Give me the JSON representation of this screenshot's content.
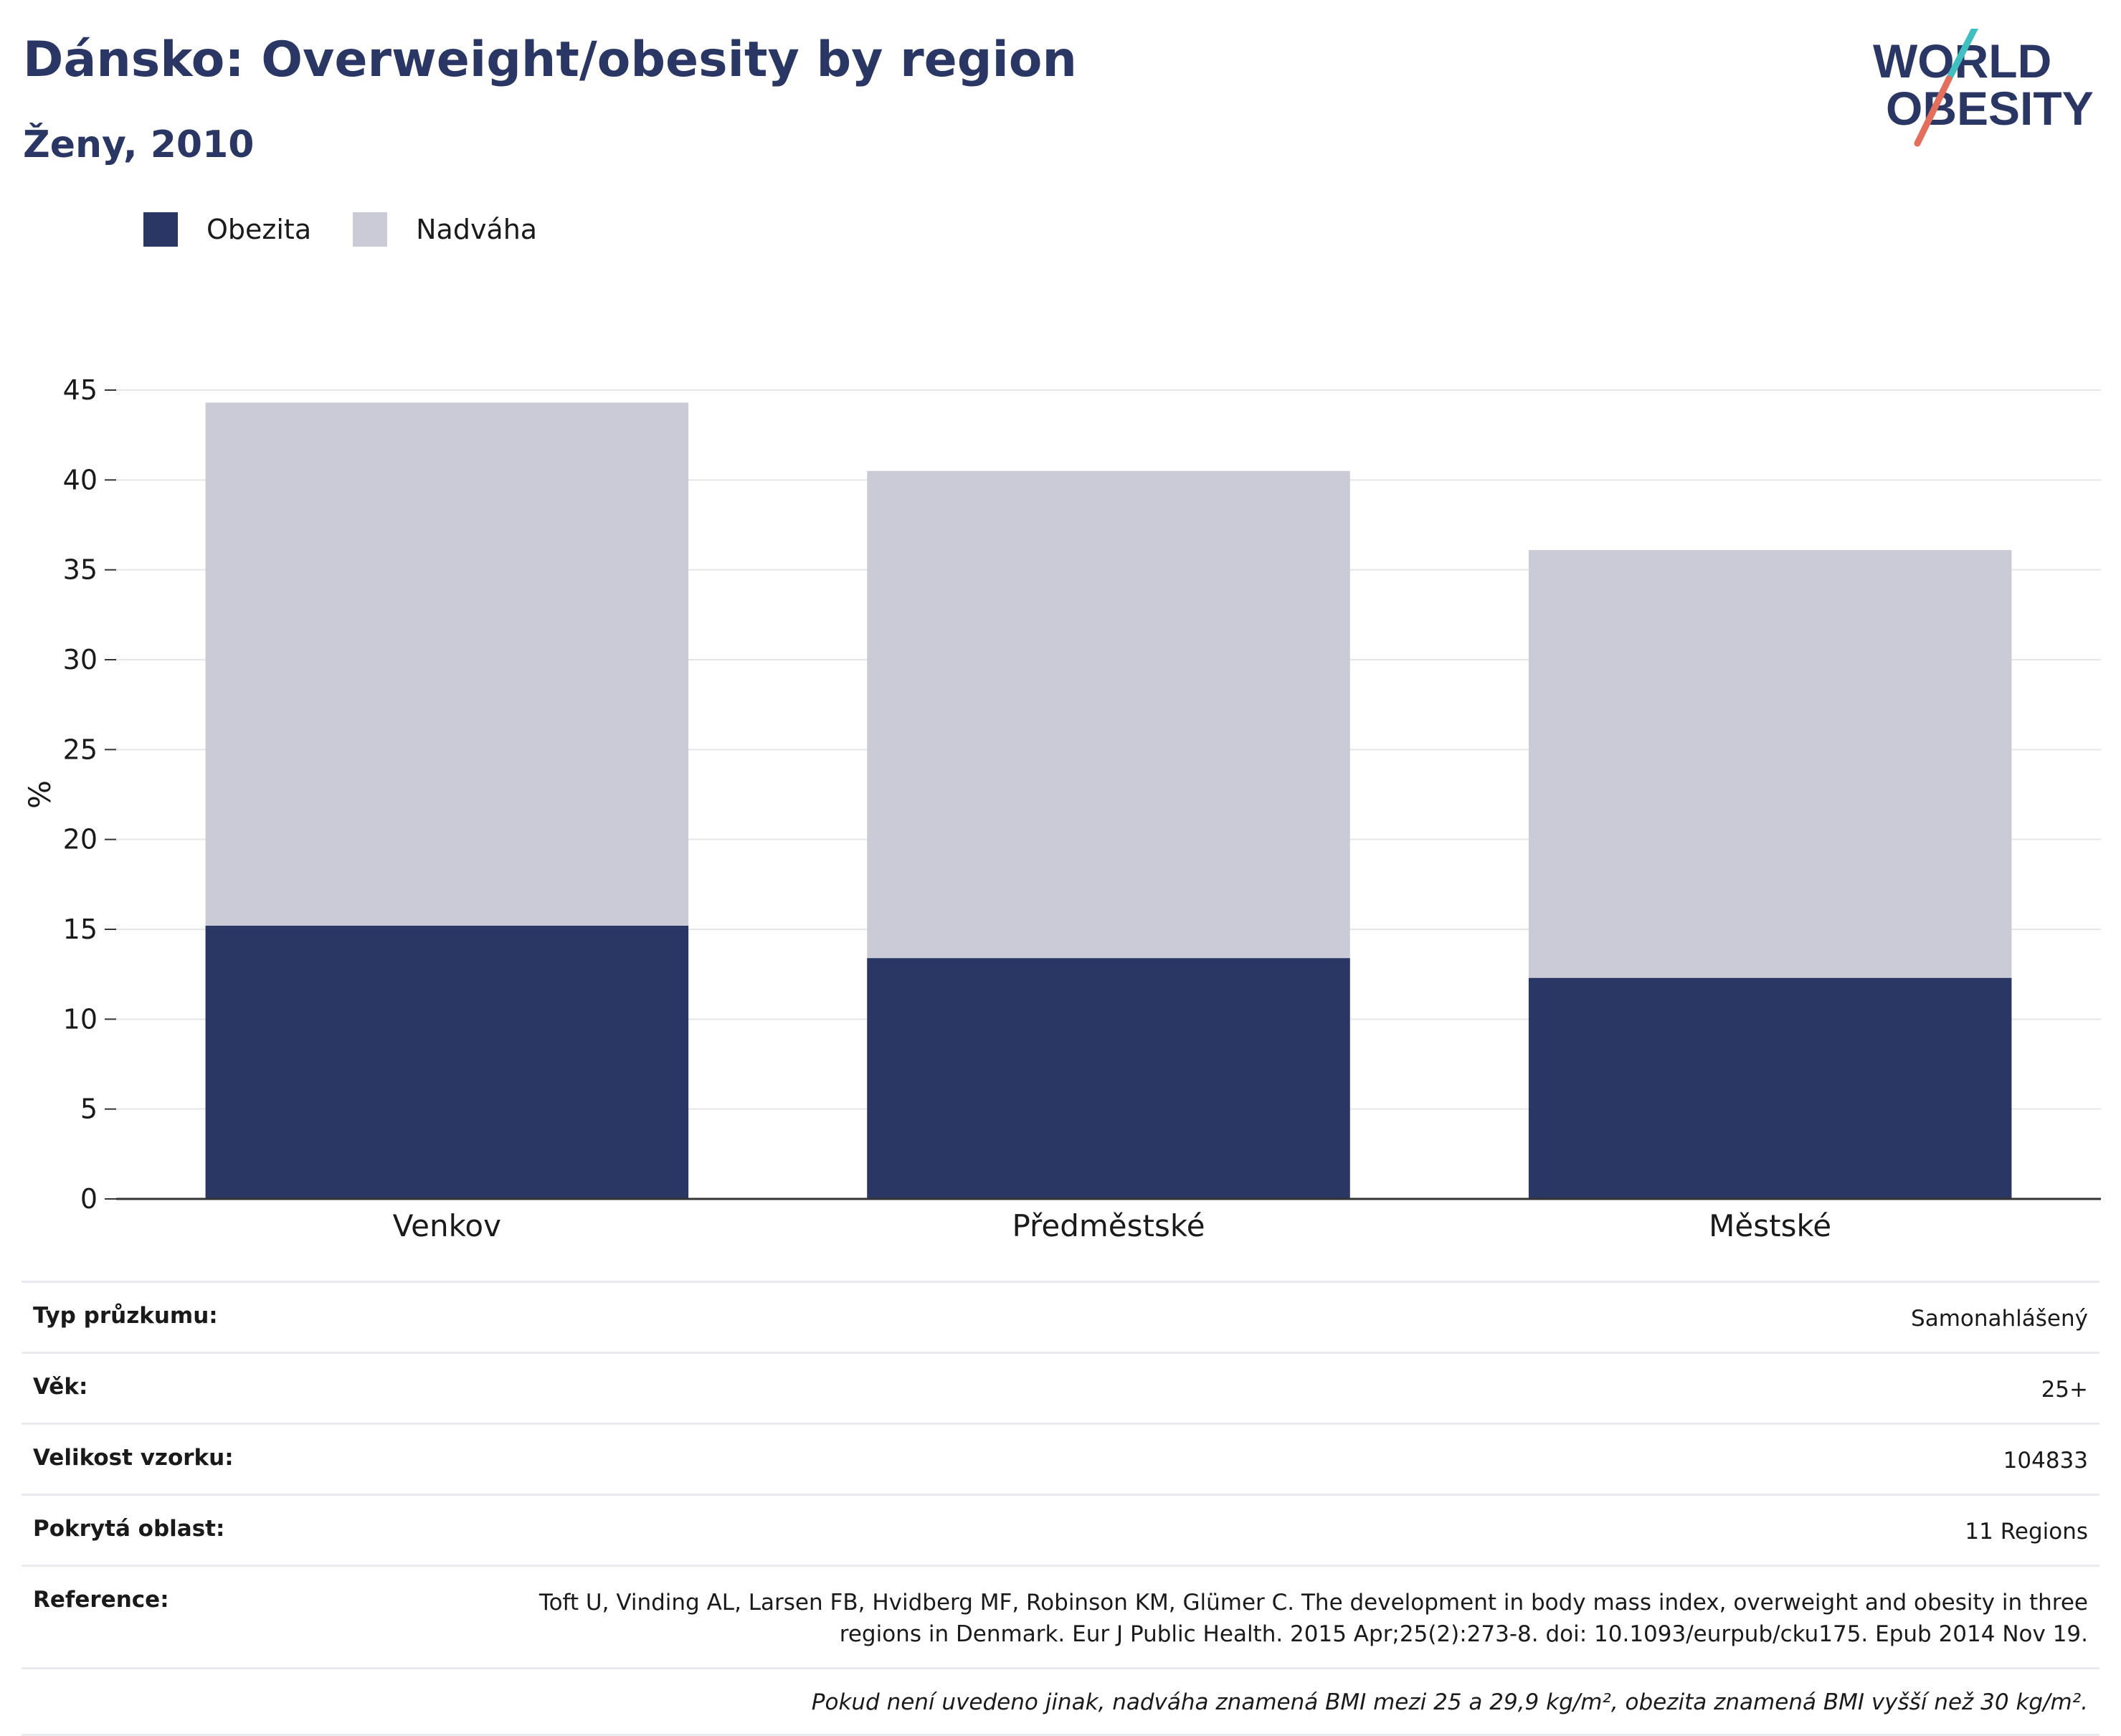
{
  "header": {
    "title": "Dánsko: Overweight/obesity by region",
    "subtitle": "Ženy, 2010"
  },
  "logo": {
    "line1": "WORLD",
    "line2": "OBESITY"
  },
  "colors": {
    "obesity": "#2a3764",
    "overweight": "#cacbd7",
    "accent_teal": "#3fbfbf",
    "accent_coral": "#e46e5c",
    "brand": "#2a3764"
  },
  "chart_data": {
    "type": "bar",
    "stacked": true,
    "categories": [
      "Venkov",
      "Předměstské",
      "Městské"
    ],
    "series": [
      {
        "name": "Obezita",
        "values": [
          15.2,
          13.4,
          12.3
        ]
      },
      {
        "name": "Nadváha",
        "values": [
          29.1,
          27.1,
          23.8
        ]
      }
    ],
    "ylabel": "%",
    "ylim": [
      0,
      45
    ],
    "yticks": [
      0,
      5,
      10,
      15,
      20,
      25,
      30,
      35,
      40,
      45
    ],
    "grid": true,
    "legend": "top-left"
  },
  "info": [
    {
      "label": "Typ průzkumu:",
      "value": "Samonahlášený"
    },
    {
      "label": "Věk:",
      "value": "25+"
    },
    {
      "label": "Velikost vzorku:",
      "value": "104833"
    },
    {
      "label": "Pokrytá oblast:",
      "value": "11 Regions"
    },
    {
      "label": "Reference:",
      "value": "Toft U, Vinding AL, Larsen FB, Hvidberg MF, Robinson KM, Glümer C. The development in body mass index, overweight and obesity in three regions in Denmark. Eur J Public Health. 2015 Apr;25(2):273-8. doi: 10.1093/eurpub/cku175. Epub 2014 Nov 19."
    }
  ],
  "footnote": "Pokud není uvedeno jinak, nadváha znamená BMI mezi 25 a 29,9 kg/m², obezita znamená BMI vyšší než 30 kg/m²."
}
